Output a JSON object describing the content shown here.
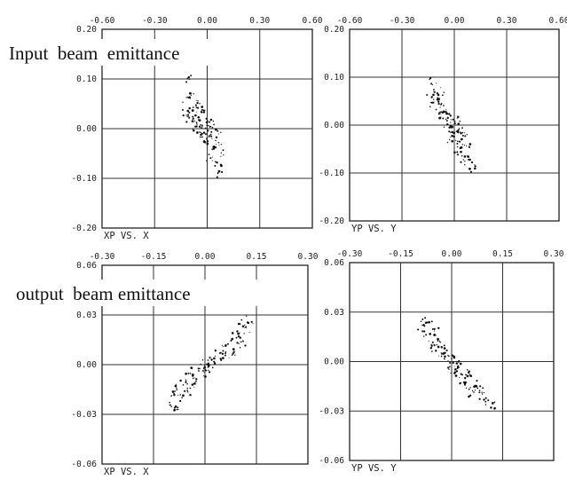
{
  "section_titles": {
    "input": "Input  beam  emittance",
    "output": "output  beam emittance"
  },
  "chart_data": [
    {
      "type": "scatter",
      "id": "input-x",
      "caption": "XP  VS.  X",
      "xlim": [
        -0.6,
        0.6
      ],
      "ylim": [
        -0.2,
        0.2
      ],
      "x_ticks": [
        "-0.60",
        "-0.30",
        "0.00",
        "0.30",
        "0.60"
      ],
      "y_ticks": [
        "0.20",
        "0.10",
        "0.00",
        "-0.10",
        "-0.20"
      ],
      "grid": true,
      "series": [
        {
          "points": [
            [
              -0.1,
              0.1
            ],
            [
              -0.08,
              0.07
            ],
            [
              -0.12,
              0.06
            ],
            [
              -0.06,
              0.05
            ],
            [
              -0.1,
              0.04
            ],
            [
              -0.04,
              0.04
            ],
            [
              -0.08,
              0.03
            ],
            [
              -0.12,
              0.03
            ],
            [
              -0.02,
              0.03
            ],
            [
              -0.06,
              0.02
            ],
            [
              -0.1,
              0.02
            ],
            [
              0.0,
              0.02
            ],
            [
              -0.04,
              0.01
            ],
            [
              -0.08,
              0.01
            ],
            [
              0.02,
              0.01
            ],
            [
              -0.02,
              0.0
            ],
            [
              -0.06,
              0.0
            ],
            [
              0.04,
              0.0
            ],
            [
              0.0,
              -0.01
            ],
            [
              -0.04,
              -0.01
            ],
            [
              0.06,
              -0.01
            ],
            [
              0.02,
              -0.02
            ],
            [
              -0.02,
              -0.02
            ],
            [
              0.06,
              -0.03
            ],
            [
              0.0,
              -0.03
            ],
            [
              0.04,
              -0.04
            ],
            [
              0.08,
              -0.05
            ],
            [
              0.02,
              -0.06
            ],
            [
              0.06,
              -0.07
            ],
            [
              0.08,
              -0.09
            ]
          ]
        }
      ]
    },
    {
      "type": "scatter",
      "id": "input-y",
      "caption": "YP  VS.  Y",
      "xlim": [
        -0.6,
        0.6
      ],
      "ylim": [
        -0.2,
        0.2
      ],
      "x_ticks": [
        "-0.60",
        "-0.30",
        "0.00",
        "0.30",
        "0.60"
      ],
      "y_ticks": [
        "0.20",
        "0.10",
        "0.00",
        "-0.10",
        "-0.20"
      ],
      "grid": true,
      "series": [
        {
          "points": [
            [
              -0.12,
              0.09
            ],
            [
              -0.1,
              0.07
            ],
            [
              -0.14,
              0.06
            ],
            [
              -0.08,
              0.06
            ],
            [
              -0.1,
              0.05
            ],
            [
              -0.06,
              0.04
            ],
            [
              -0.12,
              0.04
            ],
            [
              -0.08,
              0.03
            ],
            [
              -0.04,
              0.03
            ],
            [
              -0.1,
              0.02
            ],
            [
              -0.02,
              0.02
            ],
            [
              -0.06,
              0.01
            ],
            [
              0.0,
              0.01
            ],
            [
              -0.04,
              0.0
            ],
            [
              0.02,
              0.0
            ],
            [
              -0.02,
              -0.01
            ],
            [
              0.04,
              -0.01
            ],
            [
              0.0,
              -0.02
            ],
            [
              0.06,
              -0.02
            ],
            [
              0.02,
              -0.03
            ],
            [
              -0.02,
              -0.03
            ],
            [
              0.04,
              -0.04
            ],
            [
              0.08,
              -0.04
            ],
            [
              0.02,
              -0.05
            ],
            [
              0.06,
              -0.06
            ],
            [
              0.04,
              -0.07
            ],
            [
              0.08,
              -0.08
            ],
            [
              0.1,
              -0.09
            ]
          ]
        }
      ]
    },
    {
      "type": "scatter",
      "id": "output-x",
      "caption": "XP  VS.  X",
      "xlim": [
        -0.3,
        0.3
      ],
      "ylim": [
        -0.06,
        0.06
      ],
      "x_ticks": [
        "-0.30",
        "-0.15",
        "0.00",
        "0.15",
        "0.30"
      ],
      "y_ticks": [
        "0.06",
        "0.03",
        "0.00",
        "-0.03",
        "-0.06"
      ],
      "grid": true,
      "series": [
        {
          "points": [
            [
              0.13,
              0.027
            ],
            [
              0.11,
              0.025
            ],
            [
              0.12,
              0.021
            ],
            [
              0.09,
              0.019
            ],
            [
              0.1,
              0.015
            ],
            [
              0.07,
              0.014
            ],
            [
              0.11,
              0.012
            ],
            [
              0.06,
              0.01
            ],
            [
              0.08,
              0.008
            ],
            [
              0.04,
              0.007
            ],
            [
              0.06,
              0.005
            ],
            [
              0.02,
              0.004
            ],
            [
              0.04,
              0.002
            ],
            [
              0.0,
              0.001
            ],
            [
              0.02,
              0.0
            ],
            [
              -0.01,
              -0.002
            ],
            [
              0.01,
              -0.004
            ],
            [
              -0.03,
              -0.004
            ],
            [
              -0.01,
              -0.006
            ],
            [
              -0.05,
              -0.007
            ],
            [
              -0.03,
              -0.009
            ],
            [
              -0.06,
              -0.01
            ],
            [
              -0.04,
              -0.012
            ],
            [
              -0.08,
              -0.014
            ],
            [
              -0.05,
              -0.016
            ],
            [
              -0.09,
              -0.018
            ],
            [
              -0.07,
              -0.02
            ],
            [
              -0.1,
              -0.024
            ],
            [
              -0.08,
              -0.027
            ]
          ]
        }
      ]
    },
    {
      "type": "scatter",
      "id": "output-y",
      "caption": "YP  VS.  Y",
      "xlim": [
        -0.3,
        0.3
      ],
      "ylim": [
        -0.06,
        0.06
      ],
      "x_ticks": [
        "-0.30",
        "-0.15",
        "0.00",
        "0.15",
        "0.30"
      ],
      "y_ticks": [
        "0.06",
        "0.03",
        "0.00",
        "-0.03",
        "-0.06"
      ],
      "grid": true,
      "series": [
        {
          "points": [
            [
              -0.08,
              0.025
            ],
            [
              -0.06,
              0.022
            ],
            [
              -0.09,
              0.02
            ],
            [
              -0.05,
              0.018
            ],
            [
              -0.07,
              0.016
            ],
            [
              -0.04,
              0.014
            ],
            [
              -0.06,
              0.012
            ],
            [
              -0.03,
              0.01
            ],
            [
              -0.05,
              0.008
            ],
            [
              -0.02,
              0.006
            ],
            [
              -0.03,
              0.004
            ],
            [
              0.0,
              0.003
            ],
            [
              -0.01,
              0.001
            ],
            [
              0.01,
              -0.001
            ],
            [
              0.02,
              -0.003
            ],
            [
              0.0,
              -0.005
            ],
            [
              0.04,
              -0.006
            ],
            [
              0.02,
              -0.008
            ],
            [
              0.05,
              -0.01
            ],
            [
              0.03,
              -0.012
            ],
            [
              0.07,
              -0.013
            ],
            [
              0.05,
              -0.015
            ],
            [
              0.08,
              -0.017
            ],
            [
              0.06,
              -0.019
            ],
            [
              0.09,
              -0.021
            ],
            [
              0.1,
              -0.024
            ],
            [
              0.12,
              -0.027
            ]
          ]
        }
      ]
    }
  ]
}
